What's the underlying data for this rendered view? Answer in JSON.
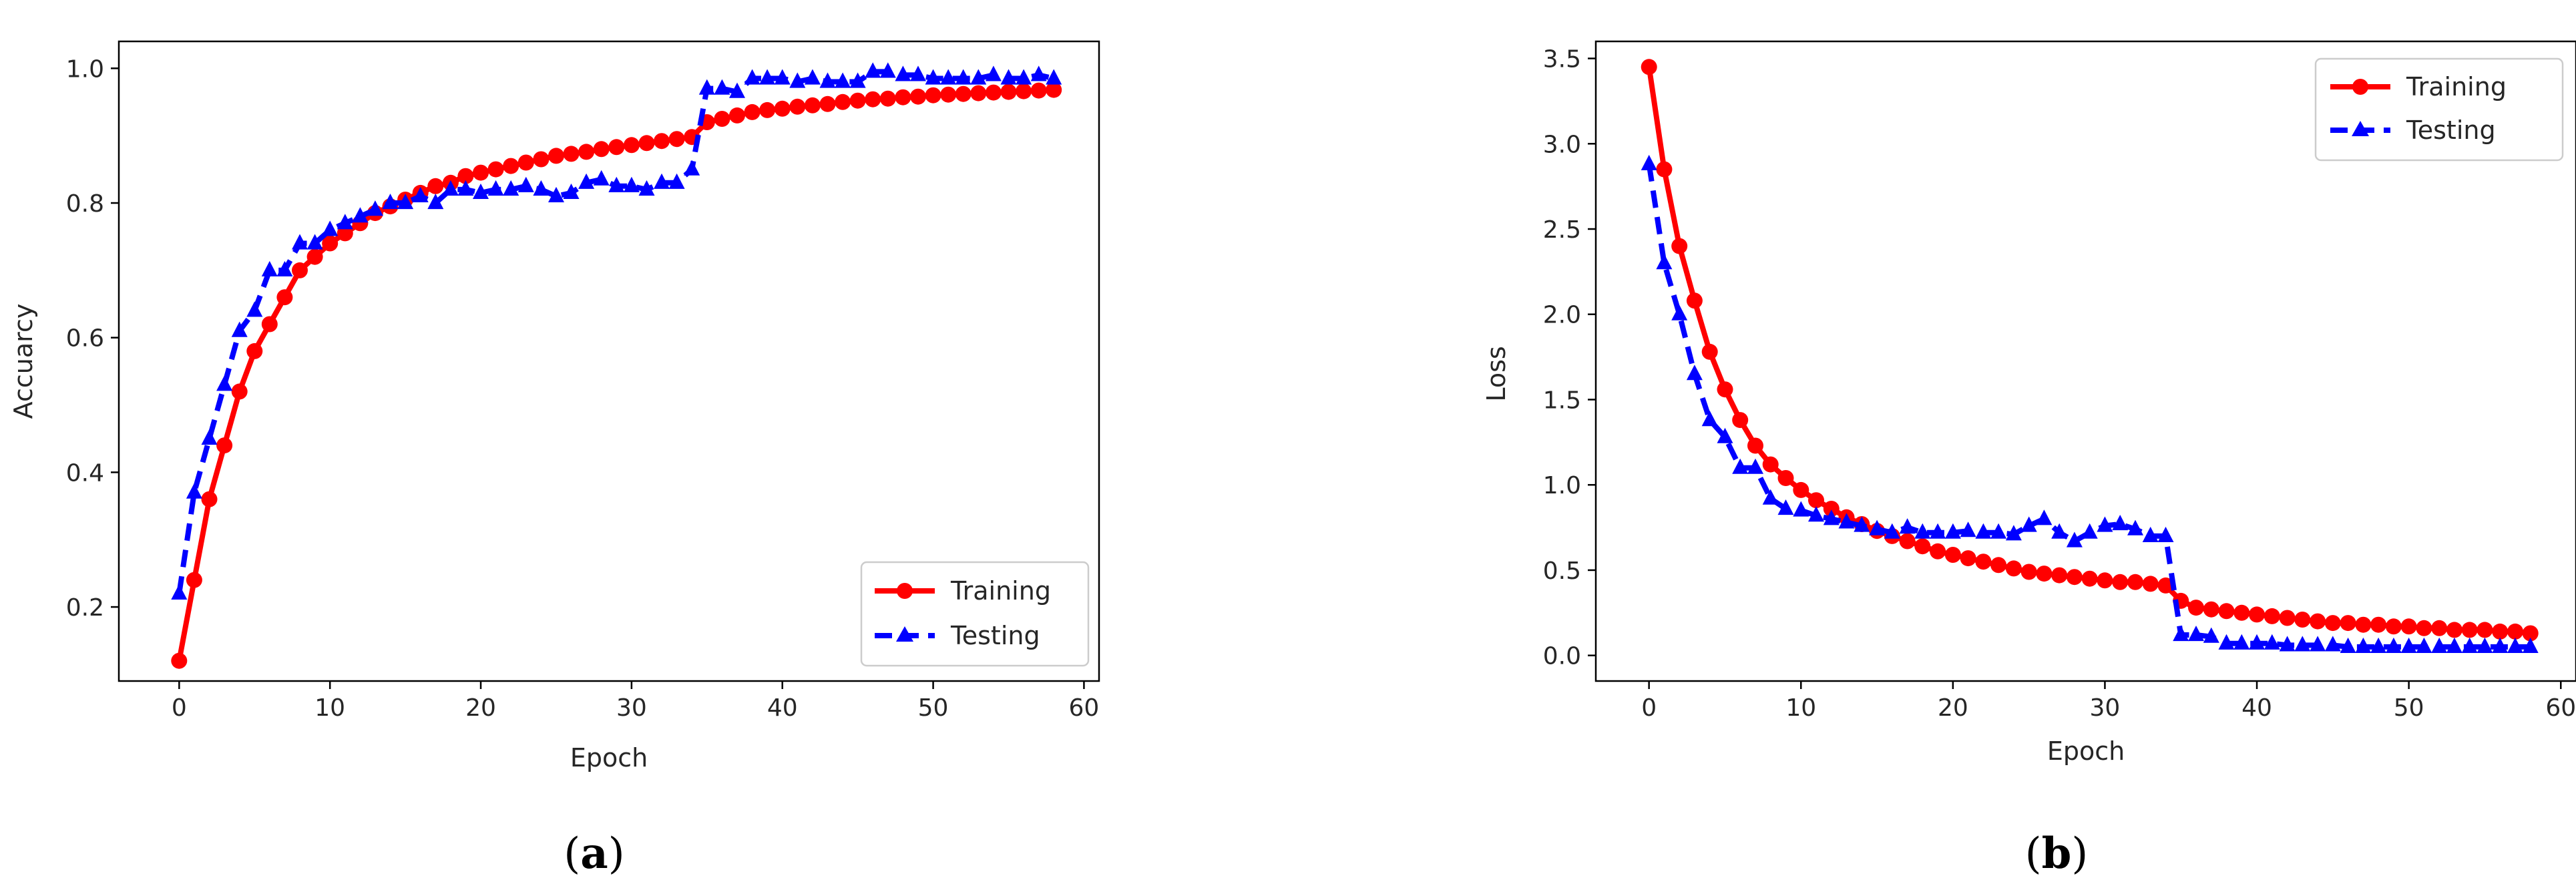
{
  "chart_data": [
    {
      "type": "line",
      "caption_letter": "a",
      "xlabel": "Epoch",
      "ylabel": "Accuarcy",
      "xlim": [
        -4,
        61
      ],
      "ylim": [
        0.09,
        1.04
      ],
      "xticks": [
        0,
        10,
        20,
        30,
        40,
        50,
        60
      ],
      "yticks": [
        0.2,
        0.4,
        0.6,
        0.8,
        1.0
      ],
      "ytick_labels": [
        "0.2",
        "0.4",
        "0.6",
        "0.8",
        "1.0"
      ],
      "legend_position": "bottom-right",
      "series": [
        {
          "name": "Training",
          "color": "#ff0000",
          "marker": "circle",
          "line_style": "solid",
          "x": [
            0,
            1,
            2,
            3,
            4,
            5,
            6,
            7,
            8,
            9,
            10,
            11,
            12,
            13,
            14,
            15,
            16,
            17,
            18,
            19,
            20,
            21,
            22,
            23,
            24,
            25,
            26,
            27,
            28,
            29,
            30,
            31,
            32,
            33,
            34,
            35,
            36,
            37,
            38,
            39,
            40,
            41,
            42,
            43,
            44,
            45,
            46,
            47,
            48,
            49,
            50,
            51,
            52,
            53,
            54,
            55,
            56,
            57,
            58
          ],
          "values": [
            0.12,
            0.24,
            0.36,
            0.44,
            0.52,
            0.58,
            0.62,
            0.66,
            0.7,
            0.72,
            0.74,
            0.755,
            0.77,
            0.785,
            0.795,
            0.805,
            0.815,
            0.825,
            0.83,
            0.84,
            0.845,
            0.85,
            0.855,
            0.86,
            0.865,
            0.87,
            0.873,
            0.876,
            0.88,
            0.883,
            0.886,
            0.889,
            0.892,
            0.895,
            0.898,
            0.92,
            0.925,
            0.93,
            0.935,
            0.938,
            0.94,
            0.943,
            0.945,
            0.947,
            0.95,
            0.952,
            0.954,
            0.955,
            0.957,
            0.958,
            0.96,
            0.961,
            0.962,
            0.963,
            0.964,
            0.965,
            0.966,
            0.967,
            0.968
          ]
        },
        {
          "name": "Testing",
          "color": "#0000ff",
          "marker": "triangle",
          "line_style": "dashed",
          "x": [
            0,
            1,
            2,
            3,
            4,
            5,
            6,
            7,
            8,
            9,
            10,
            11,
            12,
            13,
            14,
            15,
            16,
            17,
            18,
            19,
            20,
            21,
            22,
            23,
            24,
            25,
            26,
            27,
            28,
            29,
            30,
            31,
            32,
            33,
            34,
            35,
            36,
            37,
            38,
            39,
            40,
            41,
            42,
            43,
            44,
            45,
            46,
            47,
            48,
            49,
            50,
            51,
            52,
            53,
            54,
            55,
            56,
            57,
            58
          ],
          "values": [
            0.22,
            0.37,
            0.45,
            0.53,
            0.61,
            0.64,
            0.7,
            0.7,
            0.74,
            0.74,
            0.76,
            0.77,
            0.78,
            0.79,
            0.8,
            0.8,
            0.81,
            0.8,
            0.82,
            0.82,
            0.815,
            0.82,
            0.82,
            0.825,
            0.82,
            0.81,
            0.815,
            0.83,
            0.835,
            0.825,
            0.825,
            0.82,
            0.83,
            0.83,
            0.85,
            0.97,
            0.97,
            0.965,
            0.985,
            0.985,
            0.985,
            0.98,
            0.985,
            0.98,
            0.98,
            0.98,
            0.995,
            0.995,
            0.99,
            0.99,
            0.985,
            0.985,
            0.985,
            0.985,
            0.99,
            0.985,
            0.985,
            0.99,
            0.985
          ]
        }
      ]
    },
    {
      "type": "line",
      "caption_letter": "b",
      "xlabel": "Epoch",
      "ylabel": "Loss",
      "xlim": [
        -3.5,
        61
      ],
      "ylim": [
        -0.15,
        3.6
      ],
      "xticks": [
        0,
        10,
        20,
        30,
        40,
        50,
        60
      ],
      "yticks": [
        0.0,
        0.5,
        1.0,
        1.5,
        2.0,
        2.5,
        3.0,
        3.5
      ],
      "ytick_labels": [
        "0.0",
        "0.5",
        "1.0",
        "1.5",
        "2.0",
        "2.5",
        "3.0",
        "3.5"
      ],
      "legend_position": "top-right",
      "series": [
        {
          "name": "Training",
          "color": "#ff0000",
          "marker": "circle",
          "line_style": "solid",
          "x": [
            0,
            1,
            2,
            3,
            4,
            5,
            6,
            7,
            8,
            9,
            10,
            11,
            12,
            13,
            14,
            15,
            16,
            17,
            18,
            19,
            20,
            21,
            22,
            23,
            24,
            25,
            26,
            27,
            28,
            29,
            30,
            31,
            32,
            33,
            34,
            35,
            36,
            37,
            38,
            39,
            40,
            41,
            42,
            43,
            44,
            45,
            46,
            47,
            48,
            49,
            50,
            51,
            52,
            53,
            54,
            55,
            56,
            57,
            58
          ],
          "values": [
            3.45,
            2.85,
            2.4,
            2.08,
            1.78,
            1.56,
            1.38,
            1.23,
            1.12,
            1.04,
            0.97,
            0.91,
            0.86,
            0.81,
            0.77,
            0.73,
            0.7,
            0.67,
            0.64,
            0.61,
            0.59,
            0.57,
            0.55,
            0.53,
            0.51,
            0.49,
            0.48,
            0.47,
            0.46,
            0.45,
            0.44,
            0.43,
            0.43,
            0.42,
            0.41,
            0.32,
            0.28,
            0.27,
            0.26,
            0.25,
            0.24,
            0.23,
            0.22,
            0.21,
            0.2,
            0.19,
            0.19,
            0.18,
            0.18,
            0.17,
            0.17,
            0.16,
            0.16,
            0.15,
            0.15,
            0.15,
            0.14,
            0.14,
            0.13
          ]
        },
        {
          "name": "Testing",
          "color": "#0000ff",
          "marker": "triangle",
          "line_style": "dashed",
          "x": [
            0,
            1,
            2,
            3,
            4,
            5,
            6,
            7,
            8,
            9,
            10,
            11,
            12,
            13,
            14,
            15,
            16,
            17,
            18,
            19,
            20,
            21,
            22,
            23,
            24,
            25,
            26,
            27,
            28,
            29,
            30,
            31,
            32,
            33,
            34,
            35,
            36,
            37,
            38,
            39,
            40,
            41,
            42,
            43,
            44,
            45,
            46,
            47,
            48,
            49,
            50,
            51,
            52,
            53,
            54,
            55,
            56,
            57,
            58
          ],
          "values": [
            2.88,
            2.3,
            2.0,
            1.65,
            1.38,
            1.28,
            1.1,
            1.1,
            0.92,
            0.86,
            0.85,
            0.82,
            0.8,
            0.78,
            0.76,
            0.74,
            0.72,
            0.75,
            0.72,
            0.72,
            0.72,
            0.73,
            0.72,
            0.72,
            0.71,
            0.76,
            0.8,
            0.72,
            0.67,
            0.72,
            0.76,
            0.77,
            0.74,
            0.7,
            0.7,
            0.12,
            0.12,
            0.11,
            0.07,
            0.07,
            0.07,
            0.07,
            0.06,
            0.06,
            0.06,
            0.06,
            0.05,
            0.05,
            0.05,
            0.05,
            0.05,
            0.05,
            0.05,
            0.05,
            0.05,
            0.05,
            0.05,
            0.05,
            0.05
          ]
        }
      ]
    }
  ]
}
